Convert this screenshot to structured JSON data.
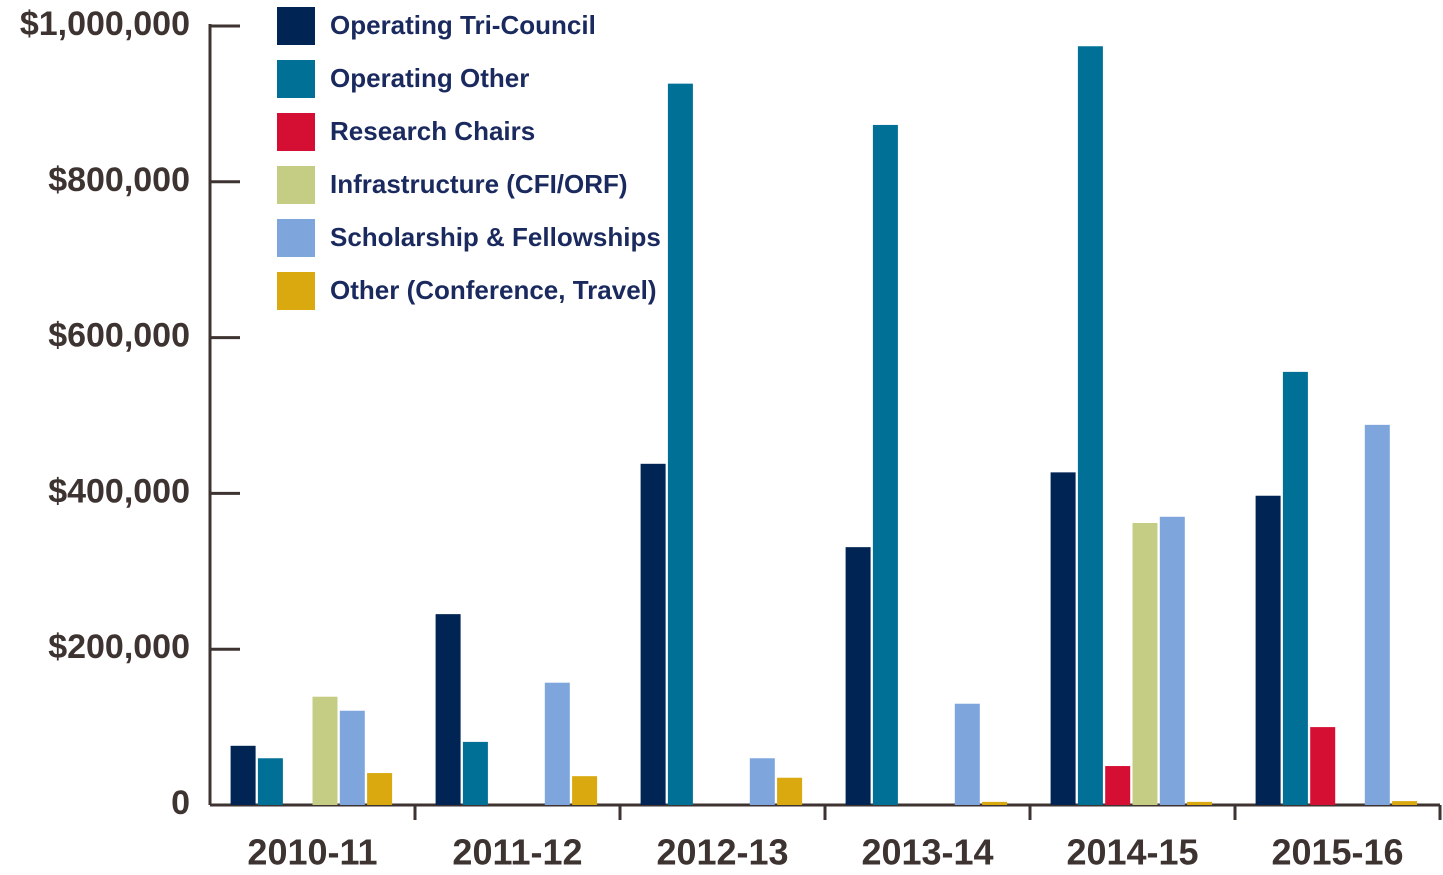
{
  "chart_data": {
    "type": "bar",
    "categories": [
      "2010-11",
      "2011-12",
      "2012-13",
      "2013-14",
      "2014-15",
      "2015-16"
    ],
    "series": [
      {
        "name": "Operating Tri-Council",
        "color": "#002554",
        "values": [
          76000,
          245000,
          438000,
          331000,
          427000,
          397000
        ]
      },
      {
        "name": "Operating Other",
        "color": "#007096",
        "values": [
          60000,
          81000,
          926000,
          873000,
          974000,
          556000
        ]
      },
      {
        "name": "Research Chairs",
        "color": "#d50f33",
        "values": [
          0,
          0,
          0,
          0,
          50000,
          100000
        ]
      },
      {
        "name": "Infrastructure (CFI/ORF)",
        "color": "#c5cc84",
        "values": [
          139000,
          0,
          0,
          0,
          362000,
          0
        ]
      },
      {
        "name": "Scholarship & Fellowships",
        "color": "#7fa6dc",
        "values": [
          121000,
          157000,
          60000,
          130000,
          370000,
          488000
        ]
      },
      {
        "name": "Other (Conference, Travel)",
        "color": "#d9a90f",
        "values": [
          41000,
          37000,
          35000,
          4000,
          4000,
          5000
        ]
      }
    ],
    "ylim": [
      0,
      1000000
    ],
    "yticks": [
      0,
      {
        "value": 200000,
        "label": "$200,000"
      },
      {
        "value": 400000,
        "label": "$400,000"
      },
      {
        "value": 600000,
        "label": "$600,000"
      },
      {
        "value": 800000,
        "label": "$800,000"
      },
      {
        "value": 1000000,
        "label": "$1,000,000"
      }
    ],
    "legend": "top-left"
  }
}
